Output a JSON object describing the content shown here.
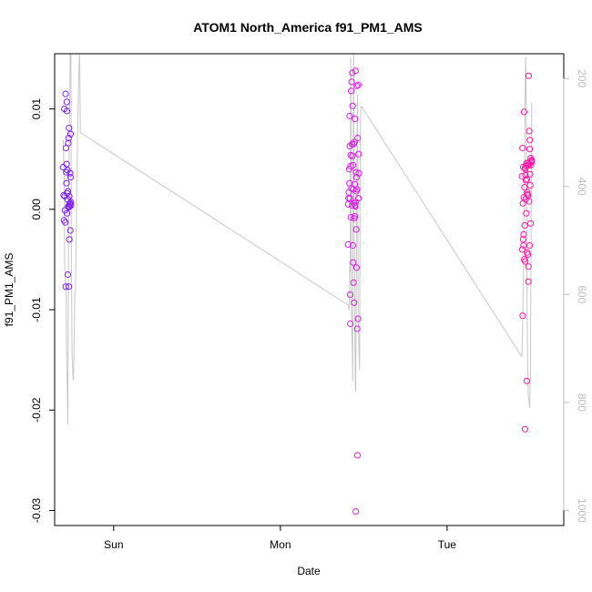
{
  "chart_data": {
    "type": "scatter",
    "title": "ATOM1 North_America f91_PM1_AMS",
    "xlabel": "Date",
    "ylabel": "f91_PM1_AMS",
    "x_ticks": [
      "Sun",
      "Mon",
      "Tue"
    ],
    "x_tick_hours": [
      24,
      48,
      72
    ],
    "xlim_hours": [
      15.5,
      88.8
    ],
    "ylim": [
      -0.0315,
      0.0155
    ],
    "y_ticks": [
      -0.03,
      -0.02,
      -0.01,
      0.0,
      0.01
    ],
    "y_tick_labels": [
      "-0.03",
      "-0.02",
      "-0.01",
      "0.00",
      "0.01"
    ],
    "y2_ticks": [
      200,
      400,
      600,
      800,
      1000
    ],
    "y2_tick_labels": [
      "200",
      "400",
      "600",
      "800",
      "1000"
    ],
    "y2lim": [
      1028,
      154
    ],
    "grid": false,
    "colors": {
      "profile_line": "#c8c8c8",
      "points_start": "#7a22f0",
      "points_mid": "#d81ff0",
      "points_end": "#ff1aa0"
    },
    "series": [
      {
        "type": "scatter",
        "points": [
          [
            16.72,
            0.0042
          ],
          [
            16.8,
            0.0014
          ],
          [
            16.85,
            -0.0011
          ],
          [
            16.9,
            0.01
          ],
          [
            16.95,
            0.0013
          ],
          [
            17.0,
            -0.0001
          ],
          [
            17.03,
            -0.0013
          ],
          [
            17.07,
            0.0115
          ],
          [
            17.1,
            -0.0077
          ],
          [
            17.13,
            0.0061
          ],
          [
            17.17,
            0.0037
          ],
          [
            17.2,
            0.0026
          ],
          [
            17.22,
            0.0045
          ],
          [
            17.25,
            0.0107
          ],
          [
            17.27,
            0.0098
          ],
          [
            17.3,
            -0.0004
          ],
          [
            17.32,
            0.0016
          ],
          [
            17.35,
            0.0039
          ],
          [
            17.37,
            0.001
          ],
          [
            17.4,
            -0.0065
          ],
          [
            17.42,
            0.0018
          ],
          [
            17.45,
            0.0003
          ],
          [
            17.47,
            0.0066
          ],
          [
            17.5,
            0.0071
          ],
          [
            17.52,
            0.0002
          ],
          [
            17.55,
            -0.0077
          ],
          [
            17.57,
            0.0081
          ],
          [
            17.6,
            0.0013
          ],
          [
            17.62,
            -0.003
          ],
          [
            17.65,
            0.0005
          ],
          [
            17.67,
            0.0003
          ],
          [
            17.7,
            0.0006
          ],
          [
            17.73,
            0.0036
          ],
          [
            17.75,
            -0.0021
          ],
          [
            17.78,
            0.0032
          ],
          [
            17.8,
            0.0075
          ],
          [
            17.83,
            0.0007
          ],
          [
            17.86,
            0.0004
          ],
          [
            57.75,
            -0.0035
          ],
          [
            57.78,
            0.0005
          ],
          [
            57.82,
            0.0011
          ],
          [
            57.86,
            0.0017
          ],
          [
            57.9,
            0.004
          ],
          [
            57.94,
            0.0026
          ],
          [
            57.97,
            0.0093
          ],
          [
            58.0,
            0.0063
          ],
          [
            58.03,
            0.0011
          ],
          [
            58.07,
            -0.0114
          ],
          [
            58.1,
            0.0043
          ],
          [
            58.13,
            0.0054
          ],
          [
            58.16,
            -0.0008
          ],
          [
            58.2,
            0.0118
          ],
          [
            58.23,
            0.0021
          ],
          [
            58.26,
            0.0127
          ],
          [
            58.3,
            0.0004
          ],
          [
            58.33,
            0.0065
          ],
          [
            58.36,
            0.0136
          ],
          [
            58.4,
            0.0103
          ],
          [
            58.43,
            -0.0036
          ],
          [
            58.46,
            0.0044
          ],
          [
            58.5,
            0.002
          ],
          [
            58.53,
            -0.0073
          ],
          [
            58.56,
            0.0065
          ],
          [
            58.6,
            -0.0093
          ],
          [
            58.63,
            0.0006
          ],
          [
            58.66,
            0.0067
          ],
          [
            58.7,
            -0.0007
          ],
          [
            58.73,
            0.009
          ],
          [
            58.76,
            0.0004
          ],
          [
            58.8,
            0.0003
          ],
          [
            58.83,
            0.0138
          ],
          [
            58.86,
            0.0007
          ],
          [
            58.9,
            0.0037
          ],
          [
            58.93,
            0.0018
          ],
          [
            58.96,
            0.0032
          ],
          [
            59.0,
            0.0123
          ],
          [
            59.03,
            0.002
          ],
          [
            59.06,
            -0.0119
          ],
          [
            59.1,
            -0.0245
          ],
          [
            59.13,
            0.0071
          ],
          [
            59.16,
            -0.0109
          ],
          [
            59.2,
            0.0124
          ],
          [
            59.23,
            0.0011
          ],
          [
            59.26,
            0.0055
          ],
          [
            59.3,
            0.0036
          ],
          [
            58.05,
            -0.0085
          ],
          [
            58.48,
            -0.0053
          ],
          [
            58.95,
            -0.0058
          ],
          [
            58.63,
            -0.0009
          ],
          [
            58.85,
            -0.0301
          ],
          [
            58.37,
            0.0053
          ],
          [
            58.7,
            0.0025
          ],
          [
            58.92,
            -0.002
          ],
          [
            82.8,
            0.0033
          ],
          [
            82.83,
            -0.004
          ],
          [
            82.86,
            0.0061
          ],
          [
            82.89,
            -0.0106
          ],
          [
            82.92,
            0.0006
          ],
          [
            82.95,
            -0.003
          ],
          [
            82.98,
            0.0042
          ],
          [
            83.02,
            -0.0025
          ],
          [
            83.05,
            0.0012
          ],
          [
            83.08,
            0.0097
          ],
          [
            83.11,
            -0.005
          ],
          [
            83.14,
            0.0022
          ],
          [
            83.17,
            -0.0016
          ],
          [
            83.2,
            0.0041
          ],
          [
            83.23,
            -0.0219
          ],
          [
            83.26,
            0.004
          ],
          [
            83.29,
            0.0034
          ],
          [
            83.32,
            0.001
          ],
          [
            83.35,
            0.0029
          ],
          [
            83.38,
            0.0043
          ],
          [
            83.41,
            -0.0004
          ],
          [
            83.44,
            0.0046
          ],
          [
            83.47,
            -0.0171
          ],
          [
            83.5,
            0.003
          ],
          [
            83.53,
            -0.0043
          ],
          [
            83.56,
            0.0017
          ],
          [
            83.59,
            0.0044
          ],
          [
            83.62,
            -0.0045
          ],
          [
            83.65,
            0.0014
          ],
          [
            83.68,
            0.0046
          ],
          [
            83.71,
            -0.0057
          ],
          [
            83.74,
            0.0133
          ],
          [
            83.77,
            0.0044
          ],
          [
            83.8,
            0.0008
          ],
          [
            83.83,
            0.0078
          ],
          [
            83.86,
            0.0045
          ],
          [
            83.89,
            0.006
          ],
          [
            83.92,
            0.0069
          ],
          [
            83.95,
            0.0035
          ],
          [
            83.98,
            0.0024
          ],
          [
            84.01,
            -0.0014
          ],
          [
            84.04,
            0.0051
          ],
          [
            84.07,
            0.0044
          ],
          [
            84.1,
            0.0047
          ],
          [
            84.13,
            0.0048
          ],
          [
            84.15,
            0.0047
          ],
          [
            84.16,
            0.0049
          ],
          [
            83.0,
            -0.0036
          ],
          [
            83.7,
            -0.0072
          ],
          [
            83.25,
            -0.0052
          ],
          [
            83.9,
            -0.0036
          ],
          [
            83.55,
            0.0015
          ]
        ]
      },
      {
        "type": "line",
        "axis": "y2",
        "name": "",
        "points": [
          [
            16.75,
            315
          ],
          [
            16.85,
            380
          ],
          [
            16.95,
            545
          ],
          [
            17.05,
            580
          ],
          [
            17.15,
            590
          ],
          [
            17.2,
            700
          ],
          [
            17.27,
            750
          ],
          [
            17.32,
            780
          ],
          [
            17.4,
            840
          ],
          [
            17.47,
            600
          ],
          [
            17.55,
            380
          ],
          [
            17.62,
            300
          ],
          [
            17.7,
            200
          ],
          [
            17.75,
            120
          ],
          [
            17.82,
            100
          ],
          [
            17.85,
            120
          ],
          [
            17.9,
            500
          ],
          [
            18.0,
            710
          ],
          [
            18.1,
            740
          ],
          [
            18.15,
            760
          ],
          [
            18.25,
            740
          ],
          [
            18.4,
            600
          ],
          [
            18.5,
            590
          ],
          [
            18.6,
            500
          ],
          [
            18.8,
            300
          ],
          [
            19.0,
            180
          ],
          [
            19.1,
            155
          ],
          [
            19.2,
            300
          ],
          [
            57.8,
            620
          ],
          [
            57.9,
            630
          ],
          [
            57.95,
            590
          ],
          [
            58.0,
            540
          ],
          [
            58.05,
            560
          ],
          [
            58.1,
            160
          ],
          [
            58.15,
            200
          ],
          [
            58.22,
            620
          ],
          [
            58.3,
            680
          ],
          [
            58.35,
            700
          ],
          [
            58.4,
            760
          ],
          [
            58.45,
            500
          ],
          [
            58.5,
            300
          ],
          [
            58.55,
            120
          ],
          [
            58.6,
            450
          ],
          [
            58.7,
            560
          ],
          [
            58.75,
            700
          ],
          [
            58.8,
            770
          ],
          [
            58.85,
            780
          ],
          [
            58.9,
            640
          ],
          [
            58.95,
            540
          ],
          [
            59.0,
            400
          ],
          [
            59.05,
            300
          ],
          [
            59.1,
            230
          ],
          [
            59.2,
            640
          ],
          [
            59.3,
            700
          ],
          [
            59.4,
            740
          ],
          [
            59.5,
            300
          ],
          [
            59.6,
            252
          ],
          [
            59.7,
            252
          ],
          [
            82.75,
            715
          ],
          [
            82.8,
            700
          ],
          [
            82.85,
            680
          ],
          [
            82.9,
            650
          ],
          [
            82.95,
            580
          ],
          [
            83.0,
            560
          ],
          [
            83.05,
            500
          ],
          [
            83.1,
            400
          ],
          [
            83.15,
            360
          ],
          [
            83.2,
            300
          ],
          [
            83.25,
            200
          ],
          [
            83.3,
            160
          ],
          [
            83.4,
            240
          ],
          [
            83.5,
            600
          ],
          [
            83.6,
            720
          ],
          [
            83.7,
            790
          ],
          [
            83.8,
            800
          ],
          [
            83.9,
            810
          ],
          [
            84.0,
            740
          ],
          [
            84.1,
            460
          ],
          [
            84.2,
            245
          ]
        ]
      }
    ]
  }
}
